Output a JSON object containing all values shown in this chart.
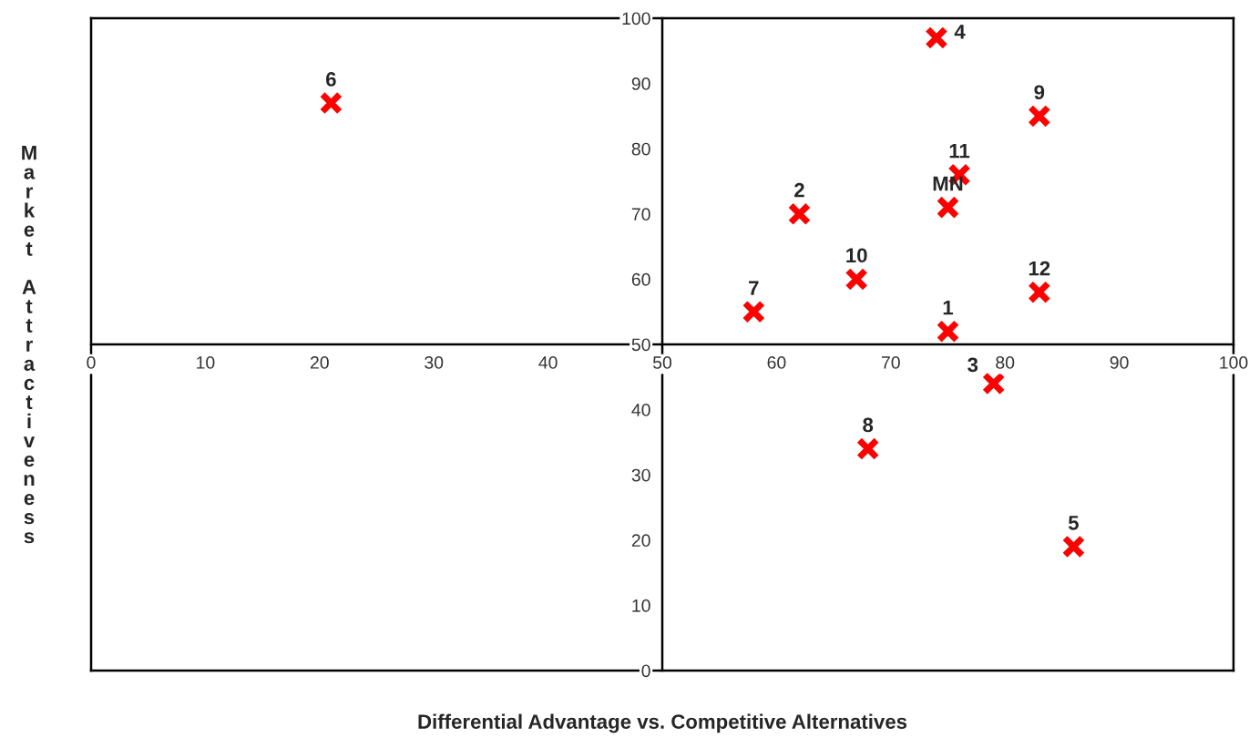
{
  "chart_data": {
    "type": "scatter",
    "xlabel": "Differential Advantage vs. Competitive Alternatives",
    "ylabel": "Market Attractiveness",
    "series": [
      {
        "color": "#ff0000",
        "x": [
          75,
          62,
          79,
          74,
          86,
          21,
          58,
          68,
          83,
          67,
          76,
          83,
          75
        ],
        "values": [
          52,
          70,
          44,
          97,
          19,
          87,
          55,
          34,
          85,
          60,
          76,
          58,
          71
        ]
      }
    ],
    "annotations": [
      {
        "text": "1",
        "x": 75,
        "y": 52
      },
      {
        "text": "2",
        "x": 62,
        "y": 70
      },
      {
        "text": "3",
        "x": 79,
        "y": 44
      },
      {
        "text": "4",
        "x": 74,
        "y": 97
      },
      {
        "text": "5",
        "x": 86,
        "y": 19
      },
      {
        "text": "6",
        "x": 21,
        "y": 87
      },
      {
        "text": "7",
        "x": 58,
        "y": 55
      },
      {
        "text": "8",
        "x": 68,
        "y": 34
      },
      {
        "text": "9",
        "x": 83,
        "y": 85
      },
      {
        "text": "10",
        "x": 67,
        "y": 60
      },
      {
        "text": "11",
        "x": 76,
        "y": 76
      },
      {
        "text": "12",
        "x": 83,
        "y": 58
      },
      {
        "text": "MN",
        "x": 75,
        "y": 71
      }
    ],
    "xlim": [
      0,
      100
    ],
    "ylim": [
      0,
      100
    ],
    "xticks": [
      0,
      10,
      20,
      30,
      40,
      50,
      60,
      70,
      80,
      90,
      100
    ],
    "yticks": [
      0,
      10,
      20,
      30,
      40,
      50,
      60,
      70,
      80,
      90,
      100
    ],
    "marker": "cross",
    "grid": false,
    "legend": false
  }
}
